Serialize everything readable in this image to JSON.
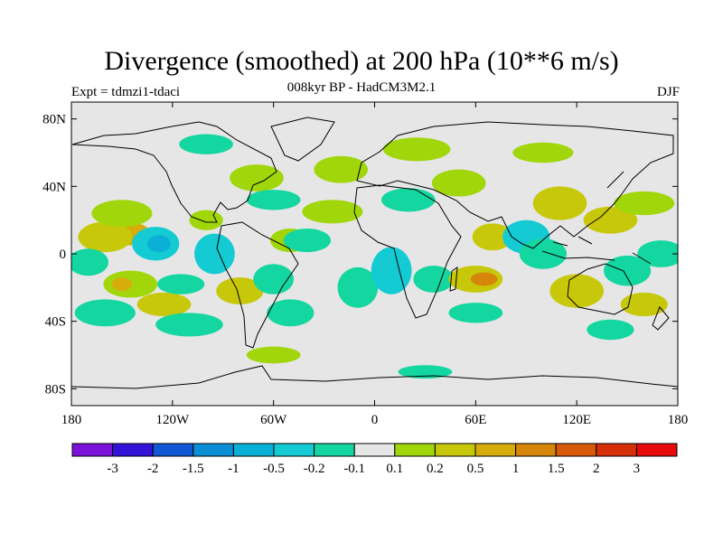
{
  "title": "Divergence (smoothed) at 200 hPa (10**6 m/s)",
  "subtitle": "008kyr BP - HadCM3M2.1",
  "experiment": "Expt = tdmzi1-tdaci",
  "season": "DJF",
  "map": {
    "projection": "cylindrical equidistant",
    "lon_range": [
      -180,
      180
    ],
    "lat_range": [
      -90,
      90
    ],
    "lat_ticks": [
      {
        "value": 80,
        "label": "80N"
      },
      {
        "value": 40,
        "label": "40N"
      },
      {
        "value": 0,
        "label": "0"
      },
      {
        "value": -40,
        "label": "40S"
      },
      {
        "value": -80,
        "label": "80S"
      }
    ],
    "lon_ticks": [
      {
        "value": -180,
        "label": "180"
      },
      {
        "value": -120,
        "label": "120W"
      },
      {
        "value": -60,
        "label": "60W"
      },
      {
        "value": 0,
        "label": "0"
      },
      {
        "value": 60,
        "label": "60E"
      },
      {
        "value": 120,
        "label": "120E"
      },
      {
        "value": 180,
        "label": "180"
      }
    ],
    "background_color": "#e6e6e6",
    "coastline_color": "#000000"
  },
  "colorbar": {
    "colors": [
      "#7a12d9",
      "#3413d9",
      "#1157d6",
      "#0a8fd6",
      "#0ab0d6",
      "#14cbd3",
      "#14d6a0",
      "#e6e6e6",
      "#a0d60a",
      "#c8c80a",
      "#d6ad0a",
      "#d6860a",
      "#d65a0a",
      "#d6300a",
      "#e60a0a"
    ],
    "labels": [
      "-3",
      "-2",
      "-1.5",
      "-1",
      "-0.5",
      "-0.2",
      "-0.1",
      "0.1",
      "0.2",
      "0.5",
      "1",
      "1.5",
      "2",
      "3"
    ]
  },
  "field_blobs": [
    {
      "lon": -147,
      "lat": 12,
      "rx": 14,
      "ry": 7,
      "level": 10
    },
    {
      "lon": -160,
      "lat": 10,
      "rx": 16,
      "ry": 9,
      "level": 9
    },
    {
      "lon": -150,
      "lat": 24,
      "rx": 18,
      "ry": 8,
      "level": 8
    },
    {
      "lon": -170,
      "lat": -5,
      "rx": 12,
      "ry": 8,
      "level": 6
    },
    {
      "lon": -130,
      "lat": 6,
      "rx": 14,
      "ry": 10,
      "level": 5
    },
    {
      "lon": -128,
      "lat": 6,
      "rx": 7,
      "ry": 5,
      "level": 4
    },
    {
      "lon": -100,
      "lat": 20,
      "rx": 10,
      "ry": 6,
      "level": 8
    },
    {
      "lon": -95,
      "lat": 0,
      "rx": 12,
      "ry": 12,
      "level": 5
    },
    {
      "lon": -145,
      "lat": -18,
      "rx": 16,
      "ry": 8,
      "level": 8
    },
    {
      "lon": -150,
      "lat": -18,
      "rx": 6,
      "ry": 4,
      "level": 10
    },
    {
      "lon": -125,
      "lat": -30,
      "rx": 16,
      "ry": 7,
      "level": 9
    },
    {
      "lon": -115,
      "lat": -18,
      "rx": 14,
      "ry": 6,
      "level": 6
    },
    {
      "lon": -160,
      "lat": -35,
      "rx": 18,
      "ry": 8,
      "level": 6
    },
    {
      "lon": -110,
      "lat": -42,
      "rx": 20,
      "ry": 7,
      "level": 6
    },
    {
      "lon": -80,
      "lat": -22,
      "rx": 14,
      "ry": 8,
      "level": 9
    },
    {
      "lon": -60,
      "lat": -15,
      "rx": 12,
      "ry": 9,
      "level": 6
    },
    {
      "lon": -50,
      "lat": -35,
      "rx": 14,
      "ry": 8,
      "level": 6
    },
    {
      "lon": -50,
      "lat": 8,
      "rx": 12,
      "ry": 7,
      "level": 8
    },
    {
      "lon": -40,
      "lat": 8,
      "rx": 14,
      "ry": 7,
      "level": 6
    },
    {
      "lon": -70,
      "lat": 45,
      "rx": 16,
      "ry": 8,
      "level": 8
    },
    {
      "lon": -60,
      "lat": 32,
      "rx": 16,
      "ry": 6,
      "level": 6
    },
    {
      "lon": -20,
      "lat": 50,
      "rx": 16,
      "ry": 8,
      "level": 8
    },
    {
      "lon": -25,
      "lat": 25,
      "rx": 18,
      "ry": 7,
      "level": 8
    },
    {
      "lon": -10,
      "lat": -20,
      "rx": 12,
      "ry": 12,
      "level": 6
    },
    {
      "lon": 10,
      "lat": -10,
      "rx": 12,
      "ry": 14,
      "level": 5
    },
    {
      "lon": 35,
      "lat": -15,
      "rx": 12,
      "ry": 8,
      "level": 6
    },
    {
      "lon": 20,
      "lat": 32,
      "rx": 16,
      "ry": 7,
      "level": 6
    },
    {
      "lon": 25,
      "lat": 62,
      "rx": 20,
      "ry": 7,
      "level": 8
    },
    {
      "lon": 50,
      "lat": 42,
      "rx": 16,
      "ry": 8,
      "level": 8
    },
    {
      "lon": 60,
      "lat": -15,
      "rx": 16,
      "ry": 8,
      "level": 9
    },
    {
      "lon": 65,
      "lat": -15,
      "rx": 8,
      "ry": 4,
      "level": 11
    },
    {
      "lon": 70,
      "lat": 10,
      "rx": 12,
      "ry": 8,
      "level": 9
    },
    {
      "lon": 60,
      "lat": -35,
      "rx": 16,
      "ry": 6,
      "level": 6
    },
    {
      "lon": 90,
      "lat": 10,
      "rx": 14,
      "ry": 10,
      "level": 5
    },
    {
      "lon": 100,
      "lat": 0,
      "rx": 14,
      "ry": 9,
      "level": 6
    },
    {
      "lon": 110,
      "lat": 30,
      "rx": 16,
      "ry": 10,
      "level": 9
    },
    {
      "lon": 120,
      "lat": -22,
      "rx": 16,
      "ry": 10,
      "level": 9
    },
    {
      "lon": 140,
      "lat": 20,
      "rx": 16,
      "ry": 8,
      "level": 9
    },
    {
      "lon": 150,
      "lat": -10,
      "rx": 14,
      "ry": 9,
      "level": 6
    },
    {
      "lon": 160,
      "lat": 30,
      "rx": 18,
      "ry": 7,
      "level": 8
    },
    {
      "lon": 170,
      "lat": 0,
      "rx": 14,
      "ry": 8,
      "level": 6
    },
    {
      "lon": 160,
      "lat": -30,
      "rx": 14,
      "ry": 7,
      "level": 9
    },
    {
      "lon": 140,
      "lat": -45,
      "rx": 14,
      "ry": 6,
      "level": 6
    },
    {
      "lon": -60,
      "lat": -60,
      "rx": 16,
      "ry": 5,
      "level": 8
    },
    {
      "lon": 30,
      "lat": -70,
      "rx": 16,
      "ry": 4,
      "level": 6
    },
    {
      "lon": -100,
      "lat": 65,
      "rx": 16,
      "ry": 6,
      "level": 6
    },
    {
      "lon": 100,
      "lat": 60,
      "rx": 18,
      "ry": 6,
      "level": 8
    }
  ]
}
